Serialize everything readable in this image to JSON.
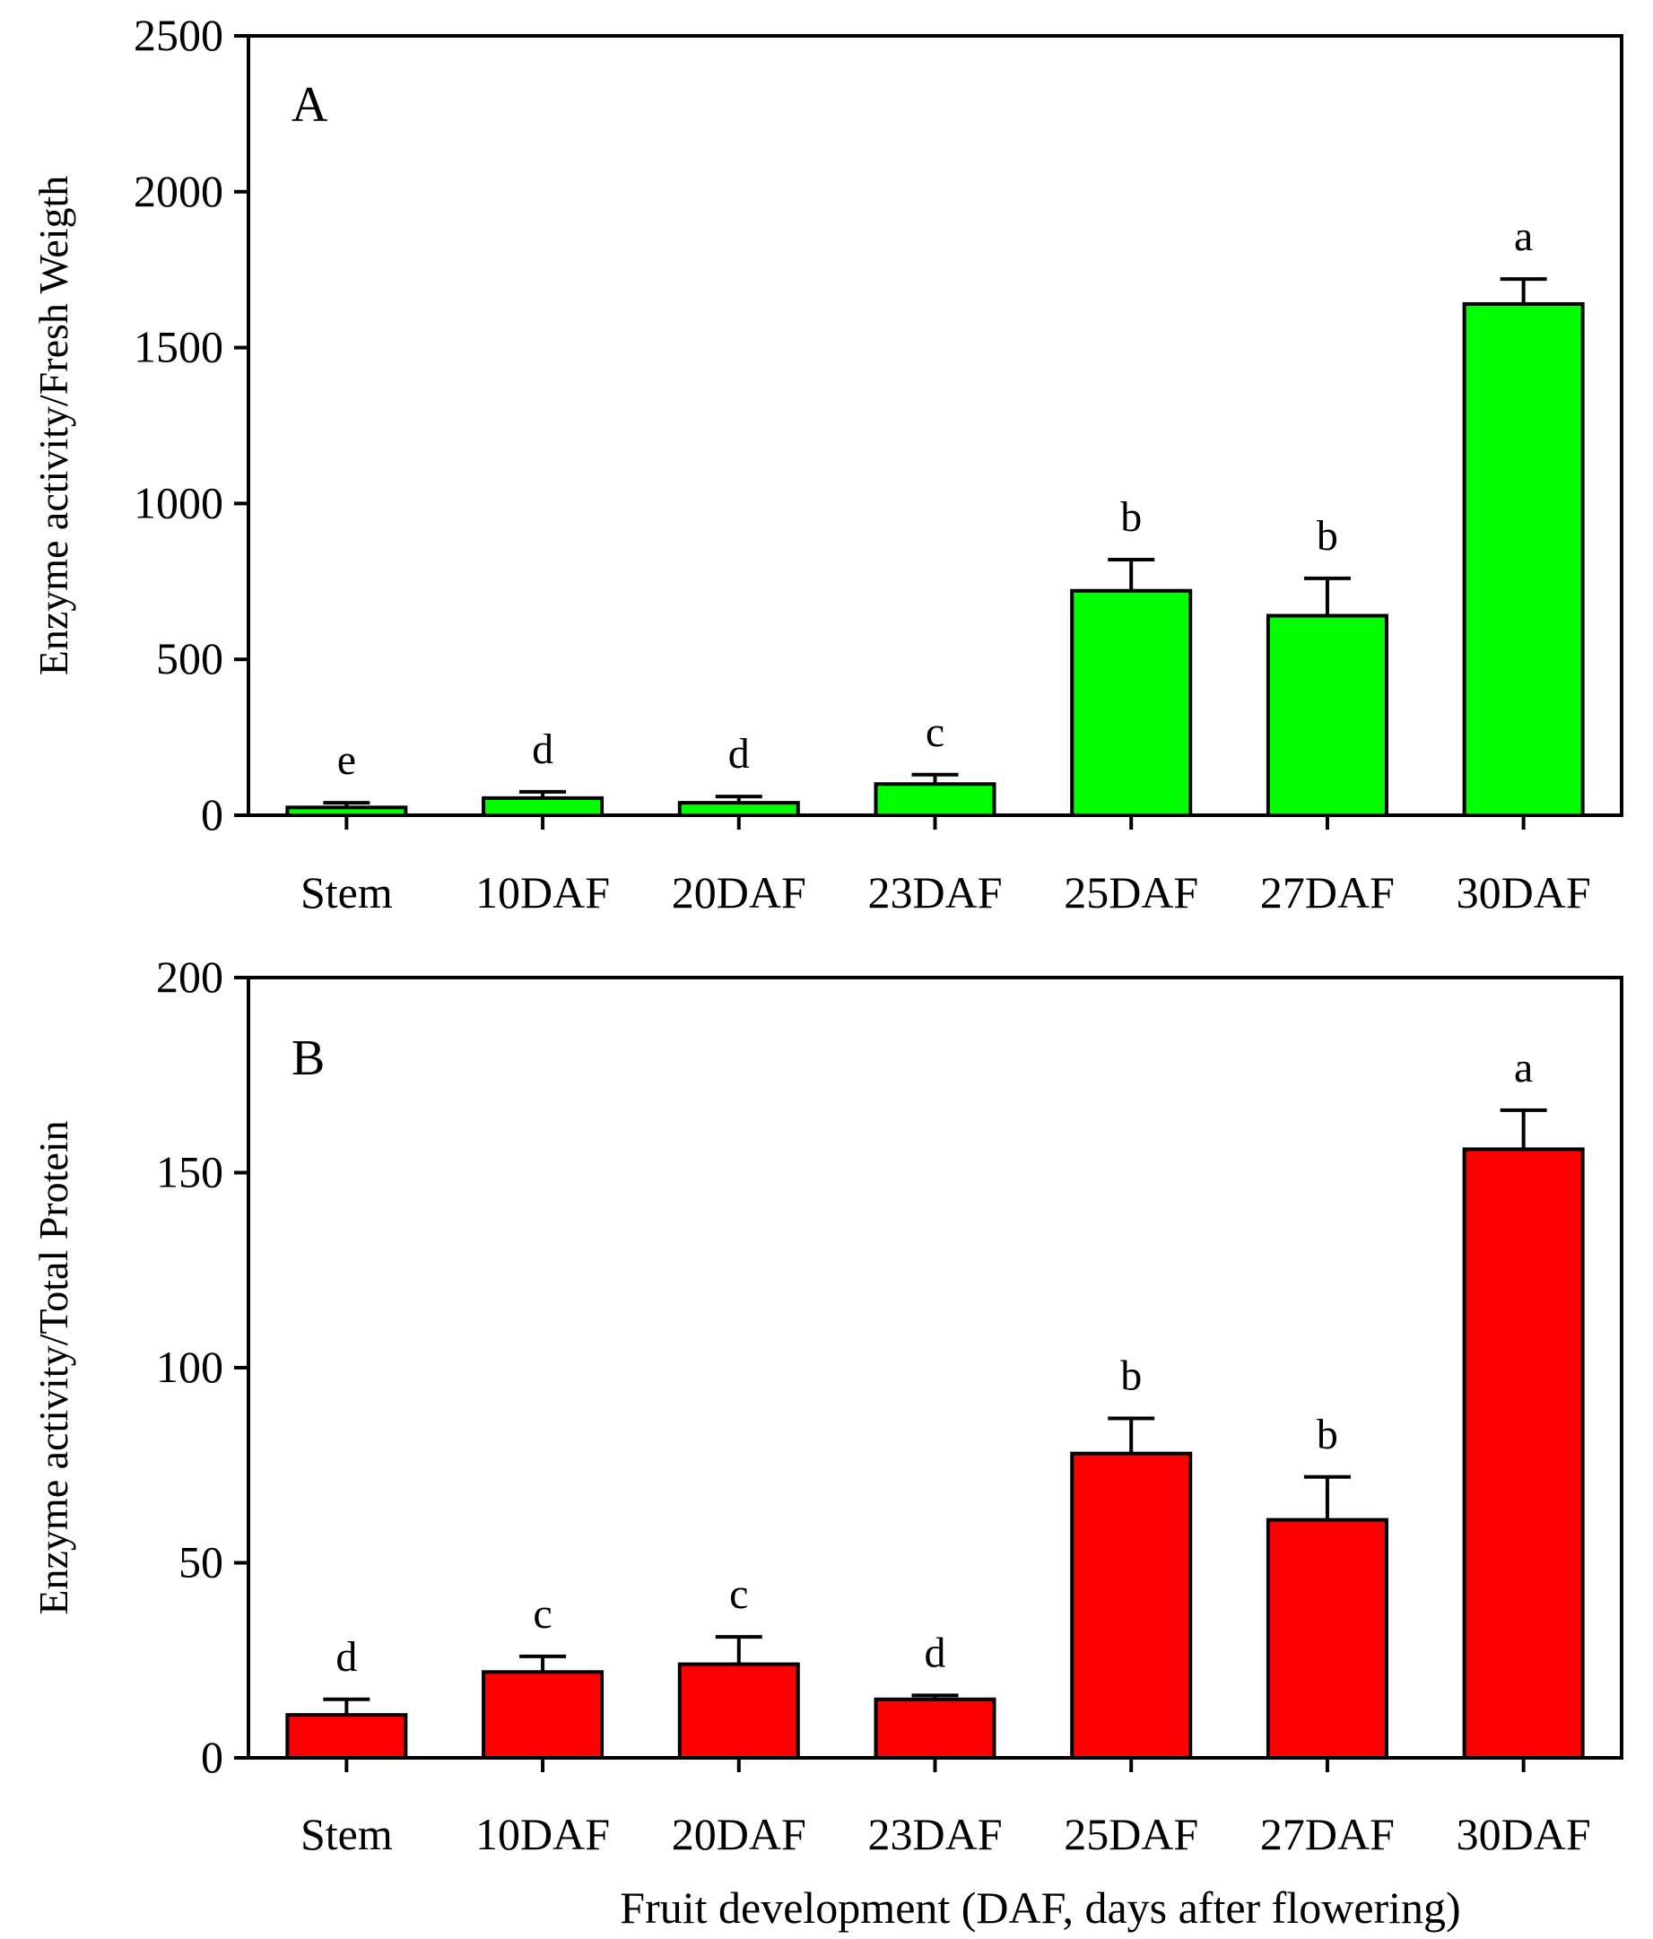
{
  "chart_data": [
    {
      "type": "bar",
      "panel": "A",
      "categories": [
        "Stem",
        "10DAF",
        "20DAF",
        "23DAF",
        "25DAF",
        "27DAF",
        "30DAF"
      ],
      "values": [
        25,
        55,
        40,
        100,
        720,
        640,
        1640
      ],
      "errors": [
        15,
        20,
        20,
        30,
        100,
        120,
        80
      ],
      "significance": [
        "e",
        "d",
        "d",
        "c",
        "b",
        "b",
        "a"
      ],
      "ylabel": "Enzyme activity/Fresh Weigth",
      "xlabel": "",
      "ylim": [
        0,
        2500
      ],
      "yticks": [
        0,
        500,
        1000,
        1500,
        2000,
        2500
      ],
      "bar_color": "#00ff00",
      "grid": false
    },
    {
      "type": "bar",
      "panel": "B",
      "categories": [
        "Stem",
        "10DAF",
        "20DAF",
        "23DAF",
        "25DAF",
        "27DAF",
        "30DAF"
      ],
      "values": [
        11,
        22,
        24,
        15,
        78,
        61,
        156
      ],
      "errors": [
        4,
        4,
        7,
        1,
        9,
        11,
        10
      ],
      "significance": [
        "d",
        "c",
        "c",
        "d",
        "b",
        "b",
        "a"
      ],
      "ylabel": "Enzyme activity/Total Protein",
      "xlabel": "Fruit development (DAF, days after flowering)",
      "ylim": [
        0,
        200
      ],
      "yticks": [
        0,
        50,
        100,
        150,
        200
      ],
      "bar_color": "#ff0000",
      "grid": false
    }
  ]
}
